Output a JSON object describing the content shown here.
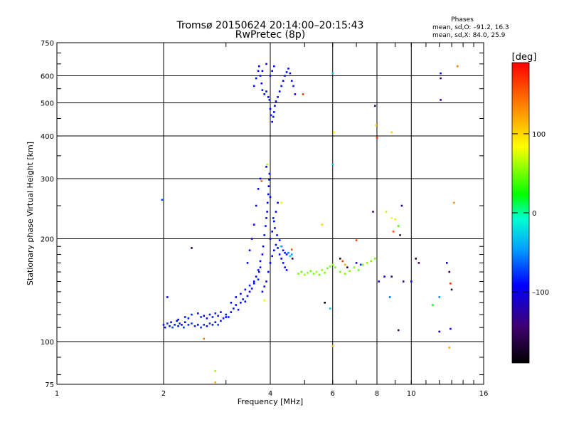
{
  "header": {
    "title": "Tromsø 20150624 20:14:00–20:15:43",
    "subtitle": "RwPretec (8p)"
  },
  "stats": {
    "heading": "Phases",
    "line_o": "mean, sd,O: –91.2, 16.3",
    "line_x": "mean, sd,X:  84.0, 25.9"
  },
  "colorbar": {
    "label": "[deg]",
    "ticks": [
      {
        "value": 100,
        "label": "100"
      },
      {
        "value": 0,
        "label": "0"
      },
      {
        "value": -100,
        "label": "–100"
      }
    ],
    "range": [
      -190,
      190
    ]
  },
  "chart_data": {
    "type": "scatter",
    "title": "Tromsø 20150624 20:14:00–20:15:43",
    "subtitle": "RwPretec (8p)",
    "xlabel": "Frequency [MHz]",
    "ylabel": "Stationary phase Virtual Height [km]",
    "xscale": "log",
    "yscale": "log",
    "xlim": [
      1,
      16
    ],
    "ylim": [
      75,
      750
    ],
    "xticks": [
      {
        "value": 1,
        "label": "1"
      },
      {
        "value": 2,
        "label": "2"
      },
      {
        "value": 4,
        "label": "4"
      },
      {
        "value": 6,
        "label": "6"
      },
      {
        "value": 8,
        "label": "8"
      },
      {
        "value": 10,
        "label": "10"
      },
      {
        "value": 16,
        "label": "16"
      }
    ],
    "yticks": [
      {
        "value": 75,
        "label": "75"
      },
      {
        "value": 100,
        "label": "100"
      },
      {
        "value": 200,
        "label": "200"
      },
      {
        "value": 300,
        "label": "300"
      },
      {
        "value": 400,
        "label": "400"
      },
      {
        "value": 500,
        "label": "500"
      },
      {
        "value": 600,
        "label": "600"
      },
      {
        "value": 750,
        "label": "750"
      }
    ],
    "grid": true,
    "color_variable": "phase [deg]",
    "points": [
      [
        2.0,
        112,
        -85
      ],
      [
        2.02,
        110,
        -90
      ],
      [
        2.05,
        113,
        -80
      ],
      [
        2.08,
        111,
        -88
      ],
      [
        2.1,
        114,
        -95
      ],
      [
        2.12,
        110,
        -70
      ],
      [
        2.15,
        112,
        -82
      ],
      [
        2.18,
        115,
        -90
      ],
      [
        2.2,
        111,
        -85
      ],
      [
        2.22,
        113,
        -78
      ],
      [
        2.25,
        112,
        -92
      ],
      [
        2.28,
        110,
        -75
      ],
      [
        2.3,
        114,
        -88
      ],
      [
        2.35,
        112,
        -80
      ],
      [
        2.4,
        113,
        -72
      ],
      [
        2.45,
        111,
        -85
      ],
      [
        2.5,
        112,
        -90
      ],
      [
        2.55,
        110,
        -78
      ],
      [
        2.6,
        112,
        -82
      ],
      [
        2.65,
        111,
        -88
      ],
      [
        2.7,
        113,
        -80
      ],
      [
        2.75,
        112,
        -85
      ],
      [
        2.8,
        114,
        -90
      ],
      [
        2.85,
        112,
        -75
      ],
      [
        2.9,
        115,
        -88
      ],
      [
        2.95,
        117,
        -82
      ],
      [
        3.0,
        118,
        -90
      ],
      [
        2.3,
        118,
        -85
      ],
      [
        2.4,
        120,
        -80
      ],
      [
        2.5,
        121,
        -88
      ],
      [
        2.6,
        119,
        -92
      ],
      [
        2.7,
        120,
        -85
      ],
      [
        2.8,
        121,
        -80
      ],
      [
        2.9,
        122,
        -88
      ],
      [
        2.2,
        116,
        -90
      ],
      [
        2.35,
        117,
        -82
      ],
      [
        2.55,
        118,
        -76
      ],
      [
        2.65,
        117,
        -84
      ],
      [
        2.75,
        118,
        -80
      ],
      [
        2.85,
        119,
        -86
      ],
      [
        3.0,
        120,
        -85
      ],
      [
        3.05,
        118,
        -88
      ],
      [
        3.1,
        122,
        -92
      ],
      [
        3.15,
        125,
        -85
      ],
      [
        3.2,
        128,
        -90
      ],
      [
        3.25,
        124,
        -88
      ],
      [
        3.3,
        130,
        -92
      ],
      [
        3.35,
        133,
        -85
      ],
      [
        3.4,
        131,
        -90
      ],
      [
        3.45,
        136,
        -88
      ],
      [
        3.5,
        140,
        -92
      ],
      [
        3.55,
        143,
        -85
      ],
      [
        3.6,
        148,
        -90
      ],
      [
        3.65,
        155,
        -88
      ],
      [
        3.7,
        152,
        -85
      ],
      [
        3.72,
        160,
        -90
      ],
      [
        3.75,
        165,
        -88
      ],
      [
        3.1,
        130,
        -85
      ],
      [
        3.2,
        135,
        -92
      ],
      [
        3.3,
        138,
        -88
      ],
      [
        3.4,
        142,
        -90
      ],
      [
        3.5,
        146,
        -85
      ],
      [
        3.6,
        150,
        -92
      ],
      [
        3.7,
        162,
        -88
      ],
      [
        3.75,
        172,
        -90
      ],
      [
        3.8,
        180,
        -95
      ],
      [
        3.82,
        190,
        -92
      ],
      [
        3.85,
        205,
        -90
      ],
      [
        3.88,
        218,
        -88
      ],
      [
        3.9,
        230,
        -92
      ],
      [
        3.92,
        240,
        -95
      ],
      [
        3.93,
        255,
        -90
      ],
      [
        3.95,
        270,
        -92
      ],
      [
        3.96,
        285,
        -90
      ],
      [
        3.97,
        298,
        -88
      ],
      [
        3.98,
        310,
        -92
      ],
      [
        3.9,
        325,
        -95
      ],
      [
        3.75,
        300,
        -90
      ],
      [
        3.7,
        280,
        -92
      ],
      [
        3.65,
        250,
        -88
      ],
      [
        3.6,
        220,
        -92
      ],
      [
        3.55,
        200,
        -90
      ],
      [
        3.5,
        185,
        -88
      ],
      [
        3.45,
        170,
        -92
      ],
      [
        3.8,
        140,
        -90
      ],
      [
        3.85,
        145,
        -88
      ],
      [
        3.9,
        150,
        -92
      ],
      [
        3.95,
        160,
        -90
      ],
      [
        4.0,
        170,
        -92
      ],
      [
        4.05,
        178,
        -88
      ],
      [
        4.1,
        185,
        -90
      ],
      [
        4.15,
        192,
        -92
      ],
      [
        4.2,
        188,
        -88
      ],
      [
        4.25,
        180,
        -90
      ],
      [
        4.3,
        175,
        -92
      ],
      [
        4.35,
        170,
        -88
      ],
      [
        4.4,
        165,
        -90
      ],
      [
        4.45,
        162,
        -92
      ],
      [
        4.0,
        200,
        -90
      ],
      [
        4.05,
        210,
        -92
      ],
      [
        4.1,
        225,
        -88
      ],
      [
        4.15,
        240,
        -90
      ],
      [
        4.2,
        255,
        -92
      ],
      [
        4.0,
        265,
        -90
      ],
      [
        4.08,
        230,
        -88
      ],
      [
        4.12,
        215,
        -92
      ],
      [
        4.18,
        205,
        -90
      ],
      [
        4.25,
        198,
        -88
      ],
      [
        4.3,
        190,
        -90
      ],
      [
        4.35,
        185,
        -92
      ],
      [
        4.4,
        182,
        -88
      ],
      [
        4.45,
        180,
        -90
      ],
      [
        4.5,
        182,
        -55
      ],
      [
        4.55,
        178,
        -30
      ],
      [
        4.6,
        180,
        -45
      ],
      [
        4.62,
        175,
        -160
      ],
      [
        3.6,
        560,
        -92
      ],
      [
        3.65,
        590,
        -90
      ],
      [
        3.7,
        620,
        -88
      ],
      [
        3.72,
        640,
        -92
      ],
      [
        3.75,
        600,
        -90
      ],
      [
        3.78,
        570,
        -92
      ],
      [
        3.8,
        545,
        -88
      ],
      [
        3.85,
        530,
        -90
      ],
      [
        3.9,
        540,
        -92
      ],
      [
        3.95,
        520,
        -90
      ],
      [
        3.98,
        510,
        -88
      ],
      [
        4.0,
        480,
        -92
      ],
      [
        4.02,
        460,
        -90
      ],
      [
        4.05,
        440,
        -92
      ],
      [
        4.08,
        455,
        -88
      ],
      [
        4.1,
        470,
        -90
      ],
      [
        4.12,
        490,
        -92
      ],
      [
        4.15,
        505,
        -90
      ],
      [
        4.2,
        520,
        -88
      ],
      [
        4.25,
        540,
        -92
      ],
      [
        4.3,
        560,
        -90
      ],
      [
        4.35,
        580,
        -92
      ],
      [
        4.4,
        600,
        -88
      ],
      [
        4.45,
        615,
        -90
      ],
      [
        4.5,
        630,
        -92
      ],
      [
        4.55,
        610,
        -90
      ],
      [
        4.6,
        580,
        -92
      ],
      [
        4.65,
        560,
        -88
      ],
      [
        4.7,
        530,
        -90
      ],
      [
        4.0,
        600,
        -92
      ],
      [
        4.05,
        620,
        -88
      ],
      [
        4.1,
        640,
        -90
      ],
      [
        3.9,
        650,
        -92
      ],
      [
        3.8,
        620,
        -90
      ],
      [
        4.8,
        158,
        50
      ],
      [
        4.9,
        160,
        45
      ],
      [
        5.0,
        157,
        60
      ],
      [
        5.1,
        159,
        55
      ],
      [
        5.2,
        161,
        48
      ],
      [
        5.3,
        158,
        52
      ],
      [
        5.4,
        160,
        58
      ],
      [
        5.5,
        157,
        46
      ],
      [
        5.6,
        162,
        55
      ],
      [
        5.7,
        159,
        50
      ],
      [
        5.8,
        164,
        48
      ],
      [
        5.9,
        166,
        52
      ],
      [
        6.0,
        168,
        55
      ],
      [
        6.1,
        165,
        50
      ],
      [
        6.3,
        160,
        48
      ],
      [
        6.5,
        158,
        52
      ],
      [
        6.7,
        161,
        55
      ],
      [
        6.9,
        165,
        50
      ],
      [
        7.1,
        162,
        48
      ],
      [
        7.3,
        168,
        52
      ],
      [
        7.5,
        170,
        55
      ],
      [
        7.7,
        172,
        50
      ],
      [
        7.9,
        175,
        48
      ],
      [
        4.95,
        530,
        170
      ],
      [
        6.0,
        610,
        -30
      ],
      [
        7.9,
        490,
        -150
      ],
      [
        7.95,
        430,
        105
      ],
      [
        8.0,
        395,
        165
      ],
      [
        8.8,
        410,
        100
      ],
      [
        6.0,
        330,
        -30
      ],
      [
        6.05,
        410,
        90
      ],
      [
        5.6,
        220,
        100
      ],
      [
        7.0,
        198,
        160
      ],
      [
        7.8,
        240,
        -150
      ],
      [
        8.5,
        240,
        70
      ],
      [
        8.8,
        230,
        85
      ],
      [
        9.0,
        228,
        90
      ],
      [
        9.2,
        218,
        40
      ],
      [
        8.9,
        210,
        160
      ],
      [
        9.3,
        205,
        -160
      ],
      [
        9.4,
        250,
        -120
      ],
      [
        10.3,
        175,
        -165
      ],
      [
        10.5,
        170,
        -150
      ],
      [
        12.1,
        610,
        -100
      ],
      [
        12.1,
        590,
        -150
      ],
      [
        12.1,
        510,
        -130
      ],
      [
        12.6,
        170,
        -100
      ],
      [
        12.8,
        160,
        -150
      ],
      [
        12.9,
        148,
        170
      ],
      [
        13.0,
        142,
        -160
      ],
      [
        13.5,
        640,
        140
      ],
      [
        13.2,
        255,
        130
      ],
      [
        12.0,
        135,
        -50
      ],
      [
        12.0,
        107,
        -110
      ],
      [
        12.9,
        109,
        -120
      ],
      [
        12.8,
        96,
        120
      ],
      [
        9.2,
        108,
        -150
      ],
      [
        8.7,
        135,
        -60
      ],
      [
        8.1,
        150,
        -120
      ],
      [
        8.4,
        155,
        -100
      ],
      [
        8.8,
        155,
        -110
      ],
      [
        9.5,
        150,
        -130
      ],
      [
        10.0,
        150,
        -100
      ],
      [
        11.5,
        128,
        20
      ],
      [
        2.6,
        102,
        140
      ],
      [
        2.8,
        82,
        60
      ],
      [
        2.8,
        76,
        120
      ],
      [
        1.98,
        260,
        -70
      ],
      [
        2.4,
        188,
        -160
      ],
      [
        2.05,
        135,
        -100
      ],
      [
        3.85,
        132,
        80
      ],
      [
        5.7,
        130,
        -190
      ],
      [
        5.9,
        125,
        -30
      ],
      [
        6.0,
        97,
        110
      ],
      [
        6.3,
        175,
        -170
      ],
      [
        6.4,
        172,
        160
      ],
      [
        6.5,
        168,
        120
      ],
      [
        6.6,
        165,
        -160
      ],
      [
        7.0,
        170,
        -120
      ],
      [
        7.2,
        168,
        -80
      ],
      [
        3.92,
        330,
        60
      ],
      [
        3.78,
        295,
        150
      ],
      [
        4.3,
        255,
        80
      ],
      [
        4.28,
        190,
        -10
      ],
      [
        4.6,
        186,
        160
      ]
    ]
  }
}
